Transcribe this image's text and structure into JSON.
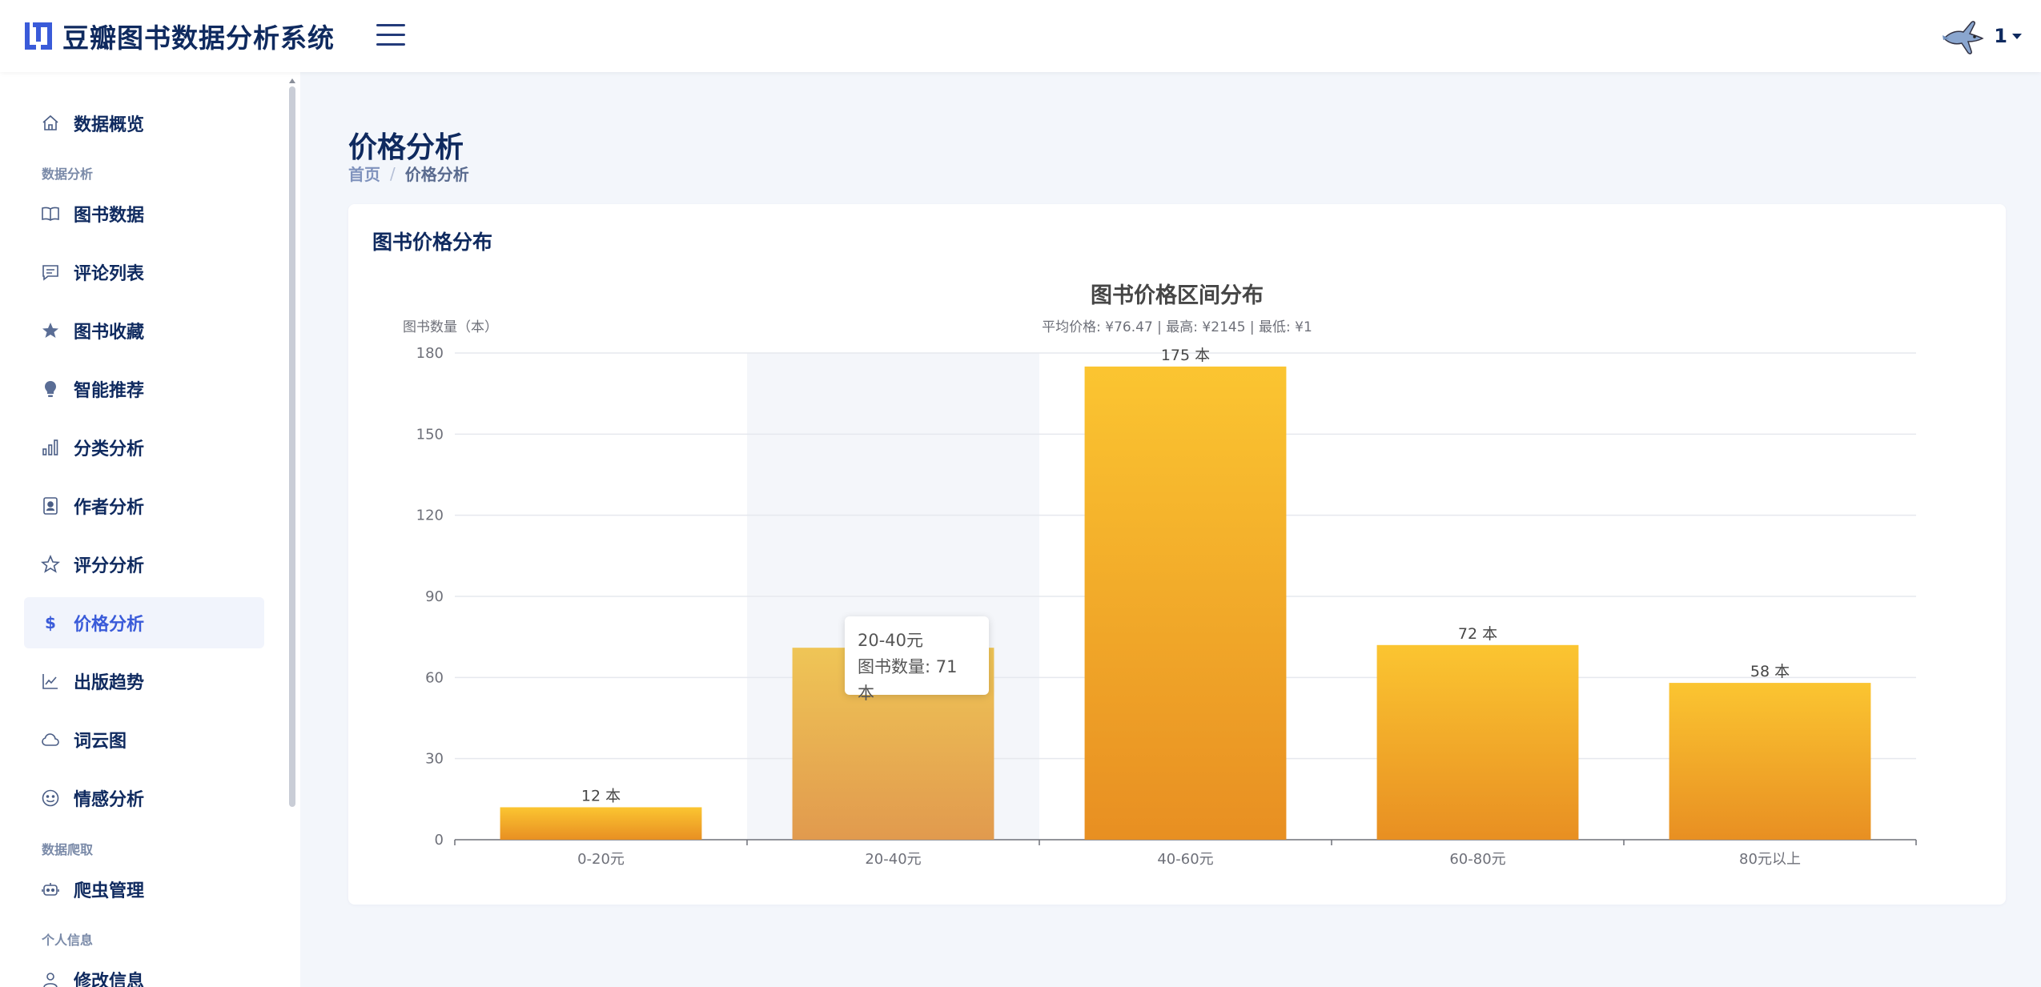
{
  "app": {
    "title": "豆瓣图书数据分析系统"
  },
  "user": {
    "name": "1"
  },
  "sidebar": {
    "items": [
      {
        "label": "数据概览",
        "icon": "home-icon"
      },
      {
        "section": "数据分析"
      },
      {
        "label": "图书数据",
        "icon": "book-open-icon"
      },
      {
        "label": "评论列表",
        "icon": "message-icon"
      },
      {
        "label": "图书收藏",
        "icon": "star-filled-icon"
      },
      {
        "label": "智能推荐",
        "icon": "lightbulb-icon"
      },
      {
        "label": "分类分析",
        "icon": "bar-chart-icon"
      },
      {
        "label": "作者分析",
        "icon": "contact-card-icon"
      },
      {
        "label": "评分分析",
        "icon": "star-outline-icon"
      },
      {
        "label": "价格分析",
        "icon": "dollar-icon",
        "active": true
      },
      {
        "label": "出版趋势",
        "icon": "line-chart-icon"
      },
      {
        "label": "词云图",
        "icon": "cloud-icon"
      },
      {
        "label": "情感分析",
        "icon": "smile-icon"
      },
      {
        "section": "数据爬取"
      },
      {
        "label": "爬虫管理",
        "icon": "robot-icon"
      },
      {
        "section": "个人信息"
      },
      {
        "label": "修改信息",
        "icon": "user-icon"
      }
    ]
  },
  "page": {
    "title": "价格分析",
    "breadcrumb": {
      "home": "首页",
      "separator": "/",
      "current": "价格分析"
    }
  },
  "card": {
    "title": "图书价格分布"
  },
  "chart_data": {
    "type": "bar",
    "title": "图书价格区间分布",
    "subtitle": "平均价格: ¥76.47 | 最高: ¥2145 | 最低: ¥1",
    "ylabel": "图书数量（本）",
    "xlabel": "",
    "categories": [
      "0-20元",
      "20-40元",
      "40-60元",
      "60-80元",
      "80元以上"
    ],
    "values": [
      12,
      71,
      175,
      72,
      58
    ],
    "data_labels": [
      "12 本",
      "",
      "175 本",
      "72 本",
      "58 本"
    ],
    "ylim": [
      0,
      180
    ],
    "yticks": [
      0,
      30,
      60,
      90,
      120,
      150,
      180
    ],
    "grid": true,
    "highlighted_category": "20-40元",
    "colors": {
      "bar_top": "#fbc531",
      "bar_bottom": "#e88f22",
      "highlight_top": "#efc556",
      "highlight_bottom": "#e19a4e",
      "axis_text": "#6e7079",
      "grid": "#e6e8ee",
      "highlight_band": "#f4f6fa"
    },
    "tooltip": {
      "category": "20-40元",
      "text": "图书数量: 71 本"
    }
  }
}
